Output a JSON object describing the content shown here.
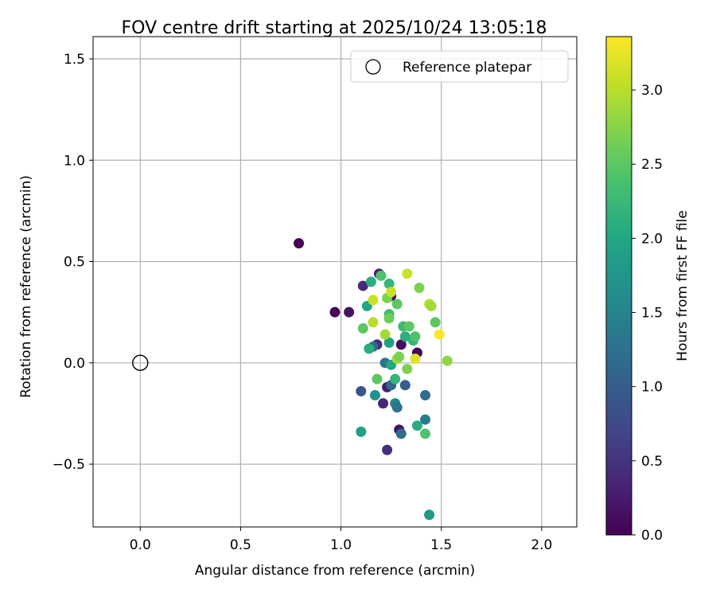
{
  "chart_data": {
    "type": "scatter",
    "title": "FOV centre drift starting at 2025/10/24 13:05:18",
    "xlabel": "Angular distance from reference (arcmin)",
    "ylabel": "Rotation from reference (arcmin)",
    "xlim": [
      -0.235,
      2.175
    ],
    "ylim": [
      -0.81,
      1.61
    ],
    "xticks": [
      0.0,
      0.5,
      1.0,
      1.5,
      2.0
    ],
    "xtick_labels": [
      "0.0",
      "0.5",
      "1.0",
      "1.5",
      "2.0"
    ],
    "yticks": [
      -0.5,
      0.0,
      0.5,
      1.0,
      1.5
    ],
    "ytick_labels": [
      "−0.5",
      "0.0",
      "0.5",
      "1.0",
      "1.5"
    ],
    "grid": true,
    "legend": {
      "position": "top-right",
      "entries": [
        "Reference platepar"
      ]
    },
    "reference_point": {
      "x": 0.0,
      "y": 0.0,
      "marker": "hollow-circle"
    },
    "colorbar": {
      "label": "Hours from first FF file",
      "range": [
        0.0,
        3.36
      ],
      "ticks": [
        0.0,
        0.5,
        1.0,
        1.5,
        2.0,
        2.5,
        3.0
      ],
      "tick_labels": [
        "0.0",
        "0.5",
        "1.0",
        "1.5",
        "2.0",
        "2.5",
        "3.0"
      ],
      "colormap": "viridis"
    },
    "points": [
      {
        "x": 0.79,
        "y": 0.59,
        "t": 0.02
      },
      {
        "x": 0.97,
        "y": 0.25,
        "t": 0.05
      },
      {
        "x": 1.04,
        "y": 0.25,
        "t": 0.15
      },
      {
        "x": 1.11,
        "y": 0.38,
        "t": 0.4
      },
      {
        "x": 1.19,
        "y": 0.44,
        "t": 0.3
      },
      {
        "x": 1.25,
        "y": 0.33,
        "t": 0.2
      },
      {
        "x": 1.18,
        "y": 0.09,
        "t": 0.4
      },
      {
        "x": 1.3,
        "y": 0.09,
        "t": 0.1
      },
      {
        "x": 1.38,
        "y": 0.05,
        "t": 0.05
      },
      {
        "x": 1.23,
        "y": -0.12,
        "t": 0.25
      },
      {
        "x": 1.21,
        "y": -0.2,
        "t": 0.35
      },
      {
        "x": 1.29,
        "y": -0.33,
        "t": 0.15
      },
      {
        "x": 1.23,
        "y": -0.43,
        "t": 0.45
      },
      {
        "x": 1.1,
        "y": -0.14,
        "t": 0.9
      },
      {
        "x": 1.16,
        "y": 0.08,
        "t": 1.2
      },
      {
        "x": 1.22,
        "y": 0.0,
        "t": 1.3
      },
      {
        "x": 1.25,
        "y": -0.11,
        "t": 1.1
      },
      {
        "x": 1.27,
        "y": -0.2,
        "t": 1.5
      },
      {
        "x": 1.28,
        "y": -0.22,
        "t": 1.3
      },
      {
        "x": 1.3,
        "y": -0.35,
        "t": 1.2
      },
      {
        "x": 1.32,
        "y": -0.11,
        "t": 1.0
      },
      {
        "x": 1.42,
        "y": -0.16,
        "t": 1.2
      },
      {
        "x": 1.42,
        "y": -0.28,
        "t": 1.4
      },
      {
        "x": 1.44,
        "y": -0.75,
        "t": 1.8
      },
      {
        "x": 1.1,
        "y": -0.34,
        "t": 1.9
      },
      {
        "x": 1.38,
        "y": -0.31,
        "t": 2.1
      },
      {
        "x": 1.42,
        "y": -0.35,
        "t": 2.4
      },
      {
        "x": 1.25,
        "y": -0.01,
        "t": 2.0
      },
      {
        "x": 1.27,
        "y": -0.08,
        "t": 2.2
      },
      {
        "x": 1.18,
        "y": -0.08,
        "t": 2.5
      },
      {
        "x": 1.17,
        "y": -0.16,
        "t": 1.7
      },
      {
        "x": 1.14,
        "y": 0.07,
        "t": 2.1
      },
      {
        "x": 1.24,
        "y": 0.1,
        "t": 1.9
      },
      {
        "x": 1.13,
        "y": 0.28,
        "t": 2.0
      },
      {
        "x": 1.15,
        "y": 0.4,
        "t": 2.1
      },
      {
        "x": 1.2,
        "y": 0.43,
        "t": 2.4
      },
      {
        "x": 1.24,
        "y": 0.39,
        "t": 2.2
      },
      {
        "x": 1.23,
        "y": 0.32,
        "t": 2.7
      },
      {
        "x": 1.28,
        "y": 0.29,
        "t": 2.5
      },
      {
        "x": 1.24,
        "y": 0.24,
        "t": 2.3
      },
      {
        "x": 1.24,
        "y": 0.22,
        "t": 2.6
      },
      {
        "x": 1.11,
        "y": 0.17,
        "t": 2.5
      },
      {
        "x": 1.22,
        "y": 0.14,
        "t": 2.9
      },
      {
        "x": 1.16,
        "y": 0.31,
        "t": 3.1
      },
      {
        "x": 1.16,
        "y": 0.2,
        "t": 3.0
      },
      {
        "x": 1.31,
        "y": 0.18,
        "t": 2.3
      },
      {
        "x": 1.34,
        "y": 0.18,
        "t": 2.5
      },
      {
        "x": 1.32,
        "y": 0.13,
        "t": 2.1
      },
      {
        "x": 1.36,
        "y": 0.11,
        "t": 2.2
      },
      {
        "x": 1.37,
        "y": 0.13,
        "t": 2.4
      },
      {
        "x": 1.28,
        "y": 0.02,
        "t": 2.9
      },
      {
        "x": 1.29,
        "y": 0.03,
        "t": 2.7
      },
      {
        "x": 1.33,
        "y": -0.03,
        "t": 2.7
      },
      {
        "x": 1.37,
        "y": 0.02,
        "t": 3.2
      },
      {
        "x": 1.33,
        "y": 0.44,
        "t": 3.1
      },
      {
        "x": 1.39,
        "y": 0.37,
        "t": 2.7
      },
      {
        "x": 1.44,
        "y": 0.29,
        "t": 3.0
      },
      {
        "x": 1.45,
        "y": 0.28,
        "t": 2.9
      },
      {
        "x": 1.47,
        "y": 0.2,
        "t": 2.5
      },
      {
        "x": 1.49,
        "y": 0.14,
        "t": 3.35
      },
      {
        "x": 1.53,
        "y": 0.01,
        "t": 2.8
      },
      {
        "x": 1.25,
        "y": 0.35,
        "t": 3.1
      }
    ]
  }
}
